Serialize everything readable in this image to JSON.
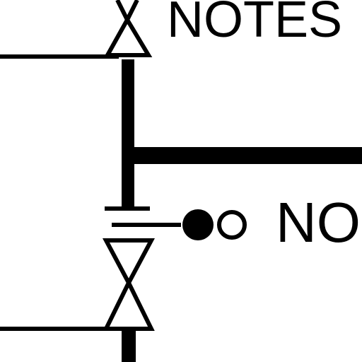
{
  "diagram": {
    "label_top": "NOTES",
    "label_middle": "NO"
  },
  "colors": {
    "line": "#000000",
    "background": "#ffffff"
  }
}
